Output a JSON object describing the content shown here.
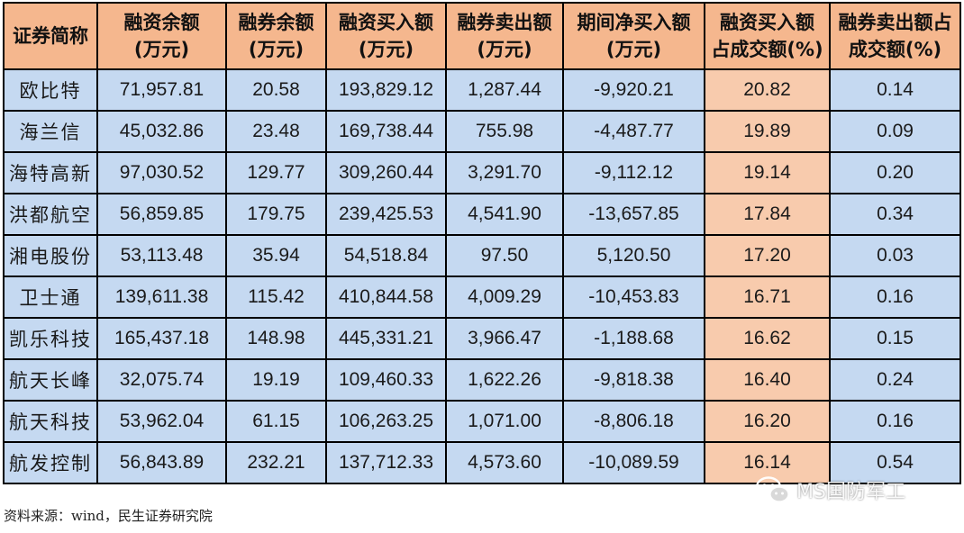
{
  "table": {
    "headers": [
      [
        "证券简称"
      ],
      [
        "融资余额",
        "(万元)"
      ],
      [
        "融券余额",
        "(万元)"
      ],
      [
        "融资买入额",
        "(万元)"
      ],
      [
        "融券卖出额",
        "(万元)"
      ],
      [
        "期间净买入额",
        "(万元)"
      ],
      [
        "融资买入额",
        "占成交额(%)"
      ],
      [
        "融券卖出额占",
        "成交额(%)"
      ]
    ],
    "rows": [
      [
        "欧比特",
        "71,957.81",
        "20.58",
        "193,829.12",
        "1,287.44",
        "-9,920.21",
        "20.82",
        "0.14"
      ],
      [
        "海兰信",
        "45,032.86",
        "23.48",
        "169,738.44",
        "755.98",
        "-4,487.77",
        "19.89",
        "0.09"
      ],
      [
        "海特高新",
        "97,030.52",
        "129.77",
        "309,260.44",
        "3,291.70",
        "-9,112.12",
        "19.14",
        "0.20"
      ],
      [
        "洪都航空",
        "56,859.85",
        "179.75",
        "239,425.53",
        "4,541.90",
        "-13,657.85",
        "17.84",
        "0.34"
      ],
      [
        "湘电股份",
        "53,113.48",
        "35.94",
        "54,518.84",
        "97.50",
        "5,120.50",
        "17.20",
        "0.03"
      ],
      [
        "卫士通",
        "139,611.38",
        "115.42",
        "410,844.58",
        "4,009.29",
        "-10,453.83",
        "16.71",
        "0.16"
      ],
      [
        "凯乐科技",
        "165,437.18",
        "148.98",
        "445,331.21",
        "3,966.47",
        "-1,188.68",
        "16.62",
        "0.15"
      ],
      [
        "航天长峰",
        "32,075.74",
        "19.19",
        "109,460.33",
        "1,622.26",
        "-9,818.38",
        "16.40",
        "0.24"
      ],
      [
        "航天科技",
        "53,962.04",
        "61.15",
        "106,263.25",
        "1,071.00",
        "-8,806.18",
        "16.20",
        "0.16"
      ],
      [
        "航发控制",
        "56,843.89",
        "232.21",
        "137,712.33",
        "4,573.60",
        "-10,089.59",
        "16.14",
        "0.54"
      ]
    ],
    "highlight_column_index": 6,
    "colors": {
      "header_bg": "#f5b78e",
      "cell_bg": "#c5d9f1",
      "highlight_bg": "#f8cbad"
    }
  },
  "source_note": "资料来源：wind，民生证券研究院",
  "watermark": {
    "icon": "wechat-icon",
    "text": "MS国防军工"
  }
}
